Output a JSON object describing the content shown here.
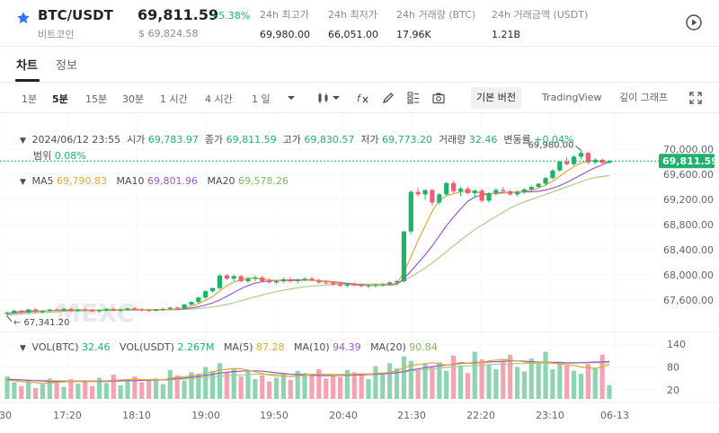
{
  "header": {
    "pair": "BTC/USDT",
    "pair_sub": "비트코인",
    "price": "69,811.59",
    "change": "+5.38%",
    "price_sub": "$ 69,824.58",
    "stats": [
      {
        "label": "24h 최고가",
        "value": "69,980.00"
      },
      {
        "label": "24h 최저가",
        "value": "66,051.00"
      },
      {
        "label": "24h 거래량 (BTC)",
        "value": "17.96K"
      },
      {
        "label": "24h 거래금액 (USDT)",
        "value": "1.21B"
      }
    ]
  },
  "tabs": [
    "차트",
    "정보"
  ],
  "toolbar": {
    "timeframes": [
      "1분",
      "5분",
      "15분",
      "30분",
      "1 시간",
      "4 시간",
      "1 일"
    ],
    "active_timeframe": "5분",
    "views": [
      "기본 버전",
      "TradingView",
      "깊이 그래프"
    ]
  },
  "info": {
    "date": "2024/06/12 23:55",
    "open_label": "시가",
    "open": "69,783.97",
    "close_label": "종가",
    "close": "69,811.59",
    "high_label": "고가",
    "high": "69,830.57",
    "low_label": "저가",
    "low": "69,773.20",
    "volume_label": "거래량",
    "volume": "32.46",
    "change_label": "변동률",
    "change": "+0.04%",
    "range_label": "범위",
    "range": "0.08%"
  },
  "ma": {
    "ma5_label": "MA5",
    "ma5": "69,790.83",
    "ma10_label": "MA10",
    "ma10": "69,801.96",
    "ma20_label": "MA20",
    "ma20": "69,578.26"
  },
  "vol": {
    "vol_btc_label": "VOL(BTC)",
    "vol_btc": "32.46",
    "vol_usdt_label": "VOL(USDT)",
    "vol_usdt": "2.267M",
    "ma5_label": "MA(5)",
    "ma5": "87.28",
    "ma10_label": "MA(10)",
    "ma10": "94.39",
    "ma20_label": "MA(20)",
    "ma20": "90.84"
  },
  "annotations": {
    "high_marker": "69,980.00",
    "low_marker": "67,341.20",
    "current_price_tag": "69,811.59",
    "watermark": "MEXC"
  },
  "colors": {
    "up": "#20b26c",
    "down": "#f05e74",
    "ma5": "#e0a83a",
    "ma10": "#9a5ac8",
    "ma20": "#a8cf8c",
    "price_tag": "#20b26c"
  },
  "chart_data": {
    "type": "candlestick",
    "price_axis_ticks": [
      "70,000.00",
      "69,600.00",
      "69,200.00",
      "68,800.00",
      "68,400.00",
      "68,000.00",
      "67,600.00"
    ],
    "price_axis_values": [
      70000,
      69600,
      69200,
      68800,
      68400,
      68000,
      67600
    ],
    "volume_axis_ticks": [
      "140",
      "80",
      "20"
    ],
    "volume_axis_values": [
      140,
      80,
      20
    ],
    "time_ticks": [
      "30",
      "17:20",
      "18:10",
      "19:00",
      "19:50",
      "20:40",
      "21:30",
      "22:20",
      "23:10",
      "06-13"
    ],
    "candles": [
      [
        67380,
        67420,
        67330,
        67400
      ],
      [
        67400,
        67450,
        67380,
        67430
      ],
      [
        67430,
        67440,
        67380,
        67400
      ],
      [
        67400,
        67460,
        67390,
        67450
      ],
      [
        67450,
        67470,
        67400,
        67410
      ],
      [
        67410,
        67440,
        67390,
        67430
      ],
      [
        67430,
        67460,
        67410,
        67450
      ],
      [
        67450,
        67480,
        67430,
        67440
      ],
      [
        67440,
        67470,
        67420,
        67460
      ],
      [
        67460,
        67480,
        67420,
        67430
      ],
      [
        67430,
        67460,
        67410,
        67450
      ],
      [
        67450,
        67470,
        67420,
        67440
      ],
      [
        67440,
        67460,
        67410,
        67420
      ],
      [
        67420,
        67450,
        67400,
        67440
      ],
      [
        67440,
        67470,
        67420,
        67460
      ],
      [
        67460,
        67480,
        67420,
        67430
      ],
      [
        67430,
        67460,
        67410,
        67450
      ],
      [
        67450,
        67480,
        67430,
        67470
      ],
      [
        67470,
        67490,
        67440,
        67450
      ],
      [
        67450,
        67470,
        67420,
        67440
      ],
      [
        67440,
        67460,
        67410,
        67430
      ],
      [
        67430,
        67460,
        67420,
        67450
      ],
      [
        67450,
        67470,
        67430,
        67460
      ],
      [
        67460,
        67490,
        67440,
        67480
      ],
      [
        67480,
        67500,
        67450,
        67470
      ],
      [
        67470,
        67540,
        67460,
        67530
      ],
      [
        67530,
        67580,
        67510,
        67570
      ],
      [
        67570,
        67650,
        67550,
        67640
      ],
      [
        67640,
        67760,
        67620,
        67740
      ],
      [
        67740,
        67800,
        67720,
        67790
      ],
      [
        67790,
        68010,
        67770,
        67990
      ],
      [
        67990,
        68010,
        67920,
        67940
      ],
      [
        67940,
        68000,
        67900,
        67980
      ],
      [
        67980,
        68000,
        67880,
        67900
      ],
      [
        67900,
        67960,
        67870,
        67940
      ],
      [
        67940,
        67990,
        67900,
        67960
      ],
      [
        67960,
        67990,
        67880,
        67900
      ],
      [
        67900,
        67940,
        67860,
        67880
      ],
      [
        67880,
        67920,
        67850,
        67900
      ],
      [
        67900,
        67950,
        67870,
        67930
      ],
      [
        67930,
        67960,
        67880,
        67900
      ],
      [
        67900,
        67940,
        67860,
        67920
      ],
      [
        67920,
        67960,
        67900,
        67940
      ],
      [
        67940,
        67970,
        67900,
        67910
      ],
      [
        67910,
        67940,
        67860,
        67880
      ],
      [
        67880,
        67920,
        67850,
        67870
      ],
      [
        67870,
        67900,
        67830,
        67850
      ],
      [
        67850,
        67880,
        67810,
        67830
      ],
      [
        67830,
        67870,
        67800,
        67850
      ],
      [
        67850,
        67880,
        67820,
        67840
      ],
      [
        67840,
        67860,
        67800,
        67820
      ],
      [
        67820,
        67850,
        67790,
        67830
      ],
      [
        67830,
        67860,
        67800,
        67840
      ],
      [
        67840,
        67870,
        67810,
        67850
      ],
      [
        67850,
        67900,
        67830,
        67880
      ],
      [
        67880,
        67920,
        67850,
        67900
      ],
      [
        67900,
        68700,
        67880,
        68690
      ],
      [
        68690,
        69350,
        68650,
        69320
      ],
      [
        69320,
        69390,
        69250,
        69280
      ],
      [
        69280,
        69360,
        69200,
        69350
      ],
      [
        69350,
        69370,
        69100,
        69150
      ],
      [
        69150,
        69300,
        69120,
        69280
      ],
      [
        69280,
        69480,
        69250,
        69460
      ],
      [
        69460,
        69500,
        69300,
        69330
      ],
      [
        69330,
        69400,
        69250,
        69370
      ],
      [
        69370,
        69410,
        69280,
        69300
      ],
      [
        69300,
        69360,
        69220,
        69340
      ],
      [
        69340,
        69370,
        69150,
        69180
      ],
      [
        69180,
        69320,
        69150,
        69300
      ],
      [
        69300,
        69380,
        69260,
        69350
      ],
      [
        69350,
        69400,
        69300,
        69330
      ],
      [
        69330,
        69360,
        69260,
        69280
      ],
      [
        69280,
        69340,
        69250,
        69320
      ],
      [
        69320,
        69380,
        69290,
        69360
      ],
      [
        69360,
        69420,
        69330,
        69400
      ],
      [
        69400,
        69460,
        69380,
        69450
      ],
      [
        69450,
        69560,
        69420,
        69540
      ],
      [
        69540,
        69680,
        69520,
        69660
      ],
      [
        69660,
        69820,
        69640,
        69800
      ],
      [
        69800,
        69870,
        69740,
        69760
      ],
      [
        69760,
        69900,
        69740,
        69880
      ],
      [
        69880,
        69980,
        69840,
        69940
      ],
      [
        69940,
        69960,
        69760,
        69790
      ],
      [
        69790,
        69860,
        69760,
        69830
      ],
      [
        69830,
        69850,
        69770,
        69780
      ],
      [
        69783.97,
        69830.57,
        69773.2,
        69811.59
      ]
    ],
    "volumes": [
      55,
      40,
      30,
      45,
      25,
      35,
      50,
      42,
      28,
      48,
      36,
      44,
      30,
      52,
      38,
      60,
      32,
      45,
      55,
      40,
      48,
      50,
      35,
      72,
      58,
      44,
      66,
      62,
      80,
      70,
      90,
      65,
      75,
      55,
      68,
      48,
      58,
      42,
      52,
      60,
      46,
      70,
      64,
      58,
      74,
      50,
      62,
      54,
      72,
      66,
      60,
      48,
      82,
      66,
      90,
      76,
      108,
      96,
      72,
      88,
      80,
      92,
      70,
      110,
      84,
      64,
      120,
      100,
      86,
      74,
      96,
      112,
      80,
      68,
      102,
      92,
      120,
      74,
      90,
      84,
      70,
      62,
      88,
      78,
      112,
      32.46
    ],
    "ma5": [
      67390,
      67410,
      67420,
      67430,
      67430,
      67425,
      67430,
      67440,
      67440,
      67445,
      67445,
      67445,
      67440,
      67440,
      67445,
      67445,
      67445,
      67450,
      67455,
      67450,
      67445,
      67440,
      67440,
      67450,
      67460,
      67475,
      67505,
      67545,
      67595,
      67655,
      67745,
      67830,
      67885,
      67920,
      67950,
      67945,
      67935,
      67920,
      67910,
      67905,
      67905,
      67910,
      67915,
      67915,
      67905,
      67895,
      67880,
      67860,
      67845,
      67840,
      67835,
      67835,
      67835,
      67840,
      67850,
      67865,
      68040,
      68290,
      68550,
      68780,
      69010,
      69190,
      69260,
      69290,
      69320,
      69340,
      69320,
      69300,
      69290,
      69290,
      69300,
      69310,
      69320,
      69330,
      69350,
      69380,
      69430,
      69490,
      69570,
      69650,
      69720,
      69780,
      69810,
      69820,
      69800,
      69790
    ],
    "ma10": [
      67380,
      67395,
      67405,
      67415,
      67420,
      67425,
      67430,
      67435,
      67435,
      67440,
      67440,
      67440,
      67440,
      67440,
      67440,
      67440,
      67440,
      67445,
      67445,
      67445,
      67445,
      67445,
      67445,
      67447,
      67450,
      67460,
      67475,
      67495,
      67520,
      67555,
      67600,
      67660,
      67720,
      67780,
      67830,
      67870,
      67890,
      67905,
      67910,
      67915,
      67920,
      67922,
      67922,
      67918,
      67910,
      67900,
      67890,
      67878,
      67866,
      67855,
      67845,
      67838,
      67836,
      67838,
      67842,
      67850,
      67940,
      68060,
      68190,
      68320,
      68460,
      68620,
      68780,
      68920,
      69050,
      69170,
      69240,
      69270,
      69290,
      69300,
      69310,
      69315,
      69315,
      69318,
      69322,
      69330,
      69350,
      69380,
      69420,
      69470,
      69530,
      69590,
      69650,
      69705,
      69750,
      69802
    ],
    "ma20": [
      67360,
      67370,
      67378,
      67386,
      67394,
      67400,
      67406,
      67412,
      67418,
      67422,
      67426,
      67430,
      67432,
      67434,
      67436,
      67438,
      67440,
      67441,
      67442,
      67443,
      67444,
      67445,
      67446,
      67447,
      67449,
      67452,
      67457,
      67465,
      67476,
      67490,
      67507,
      67530,
      67558,
      67588,
      67620,
      67652,
      67682,
      67710,
      67735,
      67757,
      67777,
      67795,
      67810,
      67822,
      67832,
      67840,
      67845,
      67848,
      67850,
      67851,
      67851,
      67851,
      67852,
      67854,
      67857,
      67862,
      67910,
      67970,
      68040,
      68110,
      68190,
      68280,
      68370,
      68460,
      68550,
      68640,
      68720,
      68790,
      68860,
      68930,
      69000,
      69060,
      69115,
      69160,
      69200,
      69240,
      69280,
      69320,
      69360,
      69400,
      69440,
      69480,
      69520,
      69550,
      69565,
      69578
    ],
    "vol_ma5": [
      45,
      44,
      42,
      40,
      39,
      37,
      38,
      40,
      41,
      42,
      42,
      43,
      42,
      44,
      43,
      45,
      46,
      47,
      48,
      47,
      46,
      47,
      46,
      50,
      53,
      54,
      57,
      60,
      64,
      67,
      72,
      74,
      76,
      75,
      72,
      67,
      63,
      59,
      57,
      56,
      55,
      56,
      58,
      60,
      62,
      60,
      58,
      59,
      60,
      61,
      62,
      61,
      63,
      64,
      66,
      70,
      78,
      84,
      86,
      89,
      91,
      88,
      85,
      88,
      92,
      90,
      89,
      92,
      96,
      98,
      100,
      98,
      96,
      93,
      91,
      92,
      94,
      90,
      88,
      86,
      84,
      80,
      78,
      76,
      80,
      87.28
    ],
    "vol_ma10": [
      48,
      47,
      46,
      45,
      44,
      43,
      42,
      42,
      42,
      42,
      42,
      42,
      42,
      42,
      42,
      43,
      43,
      44,
      44,
      45,
      45,
      46,
      46,
      48,
      50,
      51,
      53,
      55,
      58,
      61,
      64,
      66,
      68,
      69,
      70,
      70,
      69,
      67,
      65,
      63,
      61,
      60,
      59,
      58,
      58,
      57,
      57,
      58,
      58,
      59,
      59,
      60,
      61,
      62,
      63,
      65,
      68,
      72,
      75,
      78,
      81,
      83,
      85,
      87,
      89,
      90,
      91,
      92,
      93,
      94,
      95,
      96,
      96,
      95,
      94,
      93,
      93,
      92,
      92,
      91,
      91,
      91,
      92,
      93,
      93,
      94.39
    ],
    "vol_ma20": [
      46,
      46,
      46,
      45,
      45,
      45,
      44,
      44,
      44,
      44,
      44,
      44,
      44,
      44,
      44,
      44,
      44,
      44,
      45,
      45,
      45,
      45,
      46,
      46,
      47,
      48,
      49,
      50,
      52,
      54,
      56,
      57,
      58,
      59,
      60,
      61,
      61,
      61,
      61,
      61,
      61,
      61,
      61,
      61,
      61,
      61,
      61,
      61,
      61,
      61,
      61,
      62,
      62,
      63,
      64,
      65,
      67,
      69,
      71,
      73,
      75,
      77,
      79,
      80,
      82,
      83,
      84,
      85,
      86,
      87,
      88,
      88,
      89,
      89,
      89,
      90,
      90,
      90,
      90,
      90,
      90,
      91,
      91,
      91,
      91,
      90.84
    ]
  }
}
